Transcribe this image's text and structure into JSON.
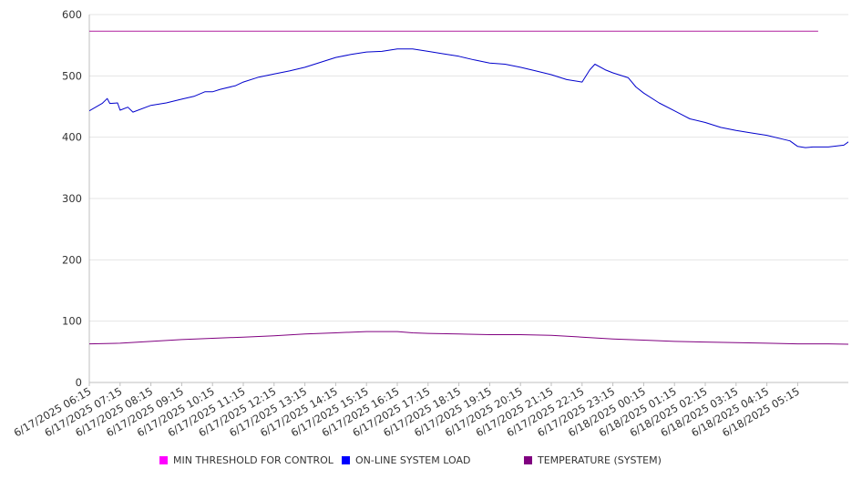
{
  "chart_data": {
    "type": "line",
    "ylim": [
      0,
      600
    ],
    "yticks": [
      0,
      100,
      200,
      300,
      400,
      500,
      600
    ],
    "xlim": [
      "6/17/2025 06:15",
      "6/18/2025 05:55"
    ],
    "xtick_labels": [
      "6/17/2025 06:15",
      "6/17/2025 07:15",
      "6/17/2025 08:15",
      "6/17/2025 09:15",
      "6/17/2025 10:15",
      "6/17/2025 11:15",
      "6/17/2025 12:15",
      "6/17/2025 13:15",
      "6/17/2025 14:15",
      "6/17/2025 15:15",
      "6/17/2025 16:15",
      "6/17/2025 17:15",
      "6/17/2025 18:15",
      "6/17/2025 19:15",
      "6/17/2025 20:15",
      "6/17/2025 21:15",
      "6/17/2025 22:15",
      "6/17/2025 23:15",
      "6/18/2025 00:15",
      "6/18/2025 01:15",
      "6/18/2025 02:15",
      "6/18/2025 03:15",
      "6/18/2025 04:15",
      "6/18/2025 05:15"
    ],
    "grid": "horizontal",
    "legend_position": "bottom",
    "series": [
      {
        "name": "MIN THRESHOLD FOR CONTROL",
        "color": "#b0209f",
        "legend_color": "#ff00ff",
        "points": [
          [
            "6/17/2025 06:15",
            573
          ],
          [
            "6/18/2025 05:55",
            573
          ]
        ]
      },
      {
        "name": "ON-LINE SYSTEM LOAD",
        "color": "#0000cc",
        "legend_color": "#0000ff",
        "points": [
          [
            "6/17/2025 06:15",
            443
          ],
          [
            "6/17/2025 06:40",
            455
          ],
          [
            "6/17/2025 06:50",
            463
          ],
          [
            "6/17/2025 06:55",
            455
          ],
          [
            "6/17/2025 07:10",
            456
          ],
          [
            "6/17/2025 07:15",
            444
          ],
          [
            "6/17/2025 07:30",
            449
          ],
          [
            "6/17/2025 07:40",
            441
          ],
          [
            "6/17/2025 08:15",
            452
          ],
          [
            "6/17/2025 08:45",
            456
          ],
          [
            "6/17/2025 09:15",
            462
          ],
          [
            "6/17/2025 09:40",
            467
          ],
          [
            "6/17/2025 10:00",
            474
          ],
          [
            "6/17/2025 10:15",
            474
          ],
          [
            "6/17/2025 10:30",
            478
          ],
          [
            "6/17/2025 11:00",
            484
          ],
          [
            "6/17/2025 11:15",
            490
          ],
          [
            "6/17/2025 11:45",
            498
          ],
          [
            "6/17/2025 12:15",
            503
          ],
          [
            "6/17/2025 12:45",
            508
          ],
          [
            "6/17/2025 13:15",
            514
          ],
          [
            "6/17/2025 13:45",
            522
          ],
          [
            "6/17/2025 14:15",
            530
          ],
          [
            "6/17/2025 14:45",
            535
          ],
          [
            "6/17/2025 15:15",
            539
          ],
          [
            "6/17/2025 15:45",
            540
          ],
          [
            "6/17/2025 16:15",
            544
          ],
          [
            "6/17/2025 16:45",
            544
          ],
          [
            "6/17/2025 17:15",
            540
          ],
          [
            "6/17/2025 17:45",
            536
          ],
          [
            "6/17/2025 18:15",
            532
          ],
          [
            "6/17/2025 18:45",
            526
          ],
          [
            "6/17/2025 19:15",
            521
          ],
          [
            "6/17/2025 19:45",
            519
          ],
          [
            "6/17/2025 20:15",
            514
          ],
          [
            "6/17/2025 20:45",
            508
          ],
          [
            "6/17/2025 21:15",
            502
          ],
          [
            "6/17/2025 21:45",
            494
          ],
          [
            "6/17/2025 22:15",
            490
          ],
          [
            "6/17/2025 22:30",
            510
          ],
          [
            "6/17/2025 22:40",
            519
          ],
          [
            "6/17/2025 23:00",
            510
          ],
          [
            "6/17/2025 23:15",
            505
          ],
          [
            "6/17/2025 23:45",
            497
          ],
          [
            "6/18/2025 00:00",
            482
          ],
          [
            "6/18/2025 00:15",
            472
          ],
          [
            "6/18/2025 00:45",
            456
          ],
          [
            "6/18/2025 01:15",
            443
          ],
          [
            "6/18/2025 01:45",
            430
          ],
          [
            "6/18/2025 02:15",
            424
          ],
          [
            "6/18/2025 02:45",
            416
          ],
          [
            "6/18/2025 03:15",
            411
          ],
          [
            "6/18/2025 03:45",
            407
          ],
          [
            "6/18/2025 04:15",
            403
          ],
          [
            "6/18/2025 04:45",
            397
          ],
          [
            "6/18/2025 05:00",
            394
          ],
          [
            "6/18/2025 05:15",
            385
          ],
          [
            "6/18/2025 05:30",
            383
          ],
          [
            "6/18/2025 05:45",
            384
          ],
          [
            "6/18/2025 06:15",
            384
          ],
          [
            "6/18/2025 06:45",
            387
          ],
          [
            "6/18/2025 07:00",
            396
          ],
          [
            "6/18/2025 07:15",
            402
          ],
          [
            "6/18/2025 07:45",
            405
          ],
          [
            "6/18/2025 08:00",
            413
          ],
          [
            "6/18/2025 08:15",
            415
          ]
        ]
      },
      {
        "name": "TEMPERATURE (SYSTEM)",
        "color": "#800080",
        "legend_color": "#800080",
        "points": [
          [
            "6/17/2025 06:15",
            63
          ],
          [
            "6/17/2025 07:15",
            64
          ],
          [
            "6/17/2025 08:15",
            67
          ],
          [
            "6/17/2025 09:15",
            70
          ],
          [
            "6/17/2025 10:15",
            72
          ],
          [
            "6/17/2025 11:15",
            74
          ],
          [
            "6/17/2025 12:15",
            76
          ],
          [
            "6/17/2025 13:15",
            79
          ],
          [
            "6/17/2025 14:15",
            81
          ],
          [
            "6/17/2025 15:15",
            83
          ],
          [
            "6/17/2025 16:15",
            83
          ],
          [
            "6/17/2025 16:45",
            81
          ],
          [
            "6/17/2025 17:15",
            80
          ],
          [
            "6/17/2025 18:15",
            79
          ],
          [
            "6/17/2025 19:15",
            78
          ],
          [
            "6/17/2025 20:15",
            78
          ],
          [
            "6/17/2025 21:15",
            77
          ],
          [
            "6/17/2025 22:15",
            74
          ],
          [
            "6/17/2025 23:15",
            71
          ],
          [
            "6/18/2025 00:15",
            69
          ],
          [
            "6/18/2025 01:15",
            67
          ],
          [
            "6/18/2025 02:15",
            66
          ],
          [
            "6/18/2025 03:15",
            65
          ],
          [
            "6/18/2025 04:15",
            64
          ],
          [
            "6/18/2025 05:15",
            63
          ],
          [
            "6/18/2025 06:15",
            63
          ],
          [
            "6/18/2025 07:15",
            62
          ],
          [
            "6/18/2025 08:15",
            62
          ]
        ]
      }
    ]
  }
}
